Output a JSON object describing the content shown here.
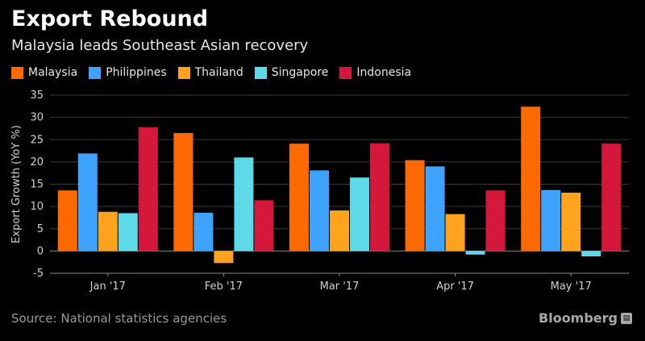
{
  "chart_data": {
    "type": "bar",
    "title": "Export Rebound",
    "subtitle": "Malaysia leads Southeast Asian recovery",
    "ylabel": "Export Growth (YoY %)",
    "xlabel": "",
    "ylim": [
      -5,
      35
    ],
    "yticks": [
      -5,
      0,
      5,
      10,
      15,
      20,
      25,
      30,
      35
    ],
    "grid": true,
    "legend_position": "top-left",
    "categories": [
      "Jan '17",
      "Feb '17",
      "Mar '17",
      "Apr '17",
      "May '17"
    ],
    "series": [
      {
        "name": "Malaysia",
        "color": "#ff6a00",
        "values": [
          13.6,
          26.5,
          24.1,
          20.4,
          32.4
        ]
      },
      {
        "name": "Philippines",
        "color": "#3ea2ff",
        "values": [
          21.9,
          8.6,
          18.1,
          19.0,
          13.7
        ]
      },
      {
        "name": "Thailand",
        "color": "#ffa21e",
        "values": [
          8.8,
          -2.7,
          9.1,
          8.3,
          13.1
        ]
      },
      {
        "name": "Singapore",
        "color": "#5ed9e8",
        "values": [
          8.5,
          21.0,
          16.5,
          -0.8,
          -1.2
        ]
      },
      {
        "name": "Indonesia",
        "color": "#d4173a",
        "values": [
          27.8,
          11.4,
          24.2,
          13.6,
          24.1
        ]
      }
    ],
    "source": "Source: National statistics agencies"
  },
  "brand": {
    "name": "Bloomberg",
    "icon": "bloomberg-terminal-icon"
  }
}
